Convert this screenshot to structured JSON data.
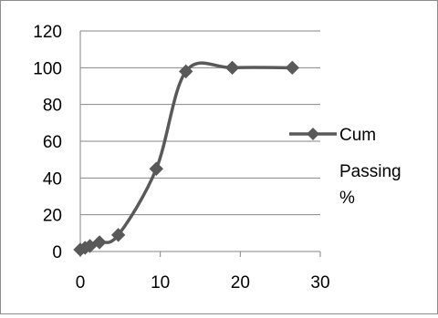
{
  "chart_data": {
    "type": "scatter",
    "title": "",
    "xlabel": "",
    "ylabel": "",
    "xlim": [
      0,
      30
    ],
    "ylim": [
      0,
      120
    ],
    "x_ticks": [
      "0",
      "10",
      "20",
      "30"
    ],
    "y_ticks": [
      "0",
      "20",
      "40",
      "60",
      "80",
      "100",
      "120"
    ],
    "grid": "horizontal",
    "legend_position": "right",
    "series": [
      {
        "name": "Cum Passing %",
        "legend_lines": [
          "Cum",
          "Passing",
          "%"
        ],
        "color": "#595959",
        "marker": "diamond",
        "smooth": true,
        "points": [
          {
            "x": 0,
            "y": 1
          },
          {
            "x": 0.6,
            "y": 2
          },
          {
            "x": 1.2,
            "y": 3
          },
          {
            "x": 2.4,
            "y": 5
          },
          {
            "x": 4.75,
            "y": 9
          },
          {
            "x": 9.5,
            "y": 45
          },
          {
            "x": 13.2,
            "y": 98
          },
          {
            "x": 19,
            "y": 100
          },
          {
            "x": 26.5,
            "y": 100
          }
        ]
      }
    ]
  }
}
